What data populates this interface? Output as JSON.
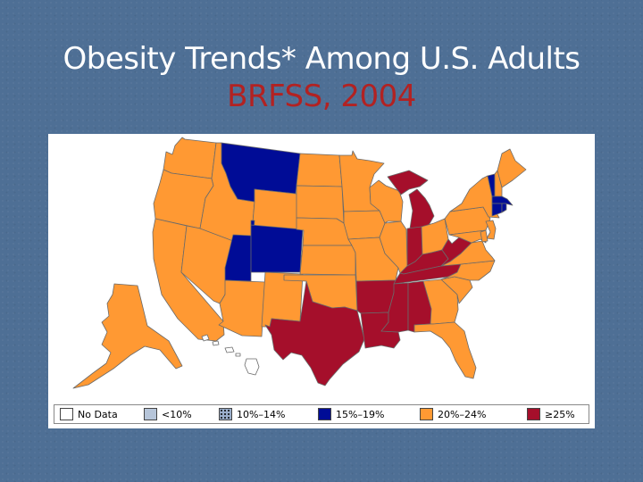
{
  "slide": {
    "title_line1": "Obesity Trends* Among U.S. Adults",
    "title_line2": "BRFSS, 2004",
    "title_line2_color": "#b22222"
  },
  "legend": [
    {
      "label": "No Data",
      "color": "#ffffff",
      "pattern": "none"
    },
    {
      "label": "<10%",
      "color": "#b6c5d9",
      "pattern": "none"
    },
    {
      "label": "10%–14%",
      "color": "#9aaecb",
      "pattern": "dots"
    },
    {
      "label": "15%–19%",
      "color": "#000c96",
      "pattern": "none"
    },
    {
      "label": "20%–24%",
      "color": "#ff9933",
      "pattern": "none"
    },
    {
      "label": "≥25%",
      "color": "#a50f2b",
      "pattern": "none"
    }
  ],
  "colors": {
    "orange": "#ff9933",
    "red": "#a50f2b",
    "blue": "#000c96",
    "border": "#6a6a6a"
  },
  "state_categories": {
    "WA": "20%–24%",
    "OR": "20%–24%",
    "CA": "20%–24%",
    "NV": "20%–24%",
    "ID": "20%–24%",
    "MT": "15%–19%",
    "WY": "20%–24%",
    "UT": "15%–19%",
    "CO": "15%–19%",
    "AZ": "20%–24%",
    "NM": "20%–24%",
    "ND": "20%–24%",
    "SD": "20%–24%",
    "NE": "20%–24%",
    "KS": "20%–24%",
    "OK": "20%–24%",
    "TX": "≥25%",
    "MN": "20%–24%",
    "IA": "20%–24%",
    "MO": "20%–24%",
    "AR": "≥25%",
    "LA": "≥25%",
    "WI": "20%–24%",
    "IL": "20%–24%",
    "MI": "≥25%",
    "IN": "≥25%",
    "OH": "20%–24%",
    "KY": "≥25%",
    "TN": "≥25%",
    "MS": "≥25%",
    "AL": "≥25%",
    "GA": "20%–24%",
    "FL": "20%–24%",
    "SC": "20%–24%",
    "NC": "20%–24%",
    "VA": "20%–24%",
    "WV": "≥25%",
    "PA": "20%–24%",
    "NY": "20%–24%",
    "VT": "15%–19%",
    "NH": "20%–24%",
    "ME": "20%–24%",
    "MA": "15%–19%",
    "CT": "15%–19%",
    "RI": "15%–19%",
    "NJ": "20%–24%",
    "DE": "20%–24%",
    "MD": "20%–24%",
    "AK": "20%–24%",
    "HI": "No Data"
  }
}
